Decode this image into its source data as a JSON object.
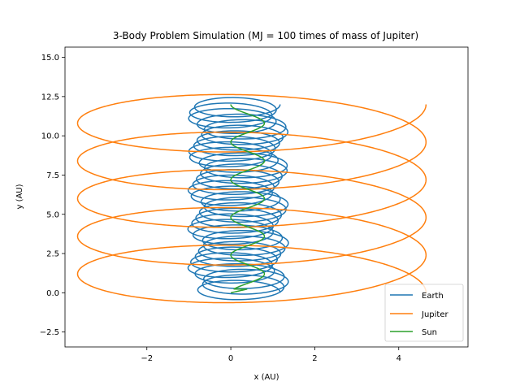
{
  "chart_data": {
    "type": "line",
    "title": "3-Body Problem Simulation (MJ = 100 times of mass of Jupiter)",
    "xlabel": "x (AU)",
    "ylabel": "y (AU)",
    "xlim": [
      -3.95,
      5.65
    ],
    "ylim": [
      -3.45,
      15.65
    ],
    "xticks": [
      -2,
      0,
      2,
      4
    ],
    "xtick_labels": [
      "−2",
      "0",
      "2",
      "4"
    ],
    "yticks": [
      -2.5,
      0,
      2.5,
      5,
      7.5,
      10,
      12.5,
      15
    ],
    "ytick_labels": [
      "−2.5",
      "0.0",
      "2.5",
      "5.0",
      "7.5",
      "10.0",
      "12.5",
      "15.0"
    ],
    "grid": false,
    "legend_position": "lower-right",
    "series": [
      {
        "name": "Earth",
        "color": "#1f77b4",
        "description_points": {
          "drift_y_start": 0.0,
          "drift_y_end": 12.0,
          "loop_radius_x": 1.0,
          "loop_radius_y": 0.7,
          "loops": 34,
          "x_center_min": 0.0,
          "x_center_max": 0.35
        }
      },
      {
        "name": "Jupiter",
        "color": "#ff7f0e",
        "description_points": {
          "center_x": 0.5,
          "start": [
            5.2,
            0.0
          ],
          "end": [
            5.2,
            12.0
          ],
          "radius_x": 4.15,
          "radius_y": 2.4,
          "turns": 5
        }
      },
      {
        "name": "Sun",
        "color": "#2ca02c",
        "description_points": {
          "start": [
            0.0,
            0.0
          ],
          "end": [
            0.3,
            12.0
          ],
          "amplitude_x": 0.4,
          "center_x": 0.4,
          "oscillations": 5
        }
      }
    ]
  }
}
